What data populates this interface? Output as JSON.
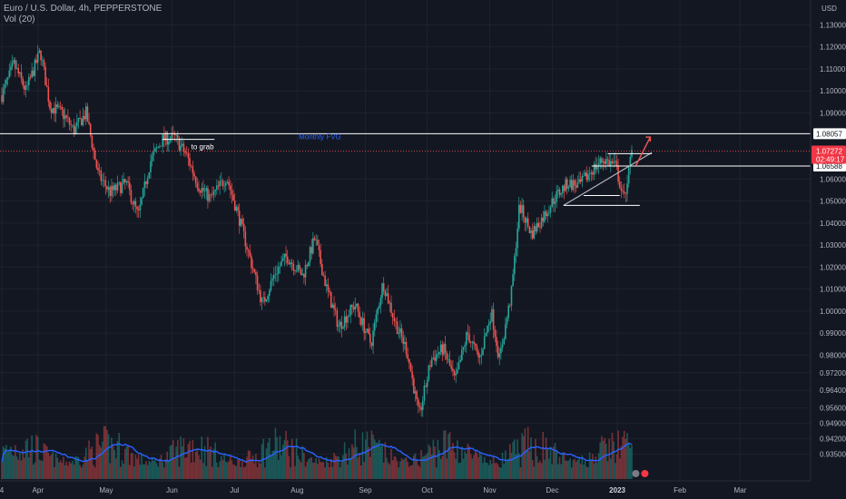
{
  "header": {
    "symbol_line": "Euro / U.S. Dollar, 4h, PEPPERSTONE",
    "indicator_line": "Vol (20)"
  },
  "chart_data": {
    "type": "candlestick",
    "currency_label": "USD",
    "ylim": [
      0.927,
      1.138
    ],
    "y_ticks": [
      "1.13000",
      "1.12000",
      "1.11000",
      "1.10000",
      "1.09000",
      "1.06000",
      "1.05000",
      "1.04000",
      "1.03000",
      "1.02000",
      "1.01000",
      "1.00000",
      "0.99000",
      "0.98000",
      "0.97200",
      "0.96400",
      "0.95600",
      "0.94900",
      "0.94200",
      "0.93500"
    ],
    "x_ticks": [
      {
        "label": "4",
        "pos": 0.0
      },
      {
        "label": "Apr",
        "pos": 0.045
      },
      {
        "label": "May",
        "pos": 0.13
      },
      {
        "label": "Jun",
        "pos": 0.212
      },
      {
        "label": "Jul",
        "pos": 0.29
      },
      {
        "label": "Aug",
        "pos": 0.368
      },
      {
        "label": "Sep",
        "pos": 0.453
      },
      {
        "label": "Oct",
        "pos": 0.53
      },
      {
        "label": "Nov",
        "pos": 0.608
      },
      {
        "label": "Dec",
        "pos": 0.686
      },
      {
        "label": "2023",
        "pos": 0.767,
        "bold": true
      },
      {
        "label": "Feb",
        "pos": 0.845
      },
      {
        "label": "Mar",
        "pos": 0.92
      }
    ],
    "price_path": [
      [
        0.0,
        1.098
      ],
      [
        0.015,
        1.112
      ],
      [
        0.03,
        1.1
      ],
      [
        0.048,
        1.118
      ],
      [
        0.06,
        1.093
      ],
      [
        0.075,
        1.09
      ],
      [
        0.09,
        1.082
      ],
      [
        0.105,
        1.09
      ],
      [
        0.12,
        1.062
      ],
      [
        0.135,
        1.054
      ],
      [
        0.155,
        1.058
      ],
      [
        0.17,
        1.043
      ],
      [
        0.185,
        1.068
      ],
      [
        0.2,
        1.078
      ],
      [
        0.215,
        1.079
      ],
      [
        0.23,
        1.071
      ],
      [
        0.245,
        1.057
      ],
      [
        0.26,
        1.051
      ],
      [
        0.28,
        1.061
      ],
      [
        0.295,
        1.043
      ],
      [
        0.31,
        1.023
      ],
      [
        0.325,
        1.003
      ],
      [
        0.34,
        1.017
      ],
      [
        0.355,
        1.025
      ],
      [
        0.375,
        1.016
      ],
      [
        0.39,
        1.033
      ],
      [
        0.405,
        1.01
      ],
      [
        0.42,
        0.993
      ],
      [
        0.44,
        1.003
      ],
      [
        0.46,
        0.985
      ],
      [
        0.475,
        1.013
      ],
      [
        0.49,
        0.995
      ],
      [
        0.505,
        0.982
      ],
      [
        0.52,
        0.952
      ],
      [
        0.535,
        0.978
      ],
      [
        0.55,
        0.983
      ],
      [
        0.565,
        0.968
      ],
      [
        0.58,
        0.99
      ],
      [
        0.595,
        0.978
      ],
      [
        0.61,
        1.0
      ],
      [
        0.62,
        0.978
      ],
      [
        0.635,
        1.008
      ],
      [
        0.645,
        1.048
      ],
      [
        0.66,
        1.035
      ],
      [
        0.675,
        1.043
      ],
      [
        0.69,
        1.052
      ],
      [
        0.705,
        1.058
      ],
      [
        0.72,
        1.057
      ],
      [
        0.735,
        1.064
      ],
      [
        0.75,
        1.069
      ],
      [
        0.765,
        1.066
      ],
      [
        0.775,
        1.05
      ],
      [
        0.785,
        1.072
      ]
    ],
    "horizontal_levels": [
      {
        "value": 1.08057,
        "label": "1.08057",
        "style": "white"
      },
      {
        "value": 1.06588,
        "label": "1.06588",
        "style": "white"
      }
    ],
    "current_price": {
      "label": "1.07272",
      "sub": "02:49:17"
    },
    "annotations": {
      "to_grab": "to grab",
      "monthly_fvg": "Monthly FVG"
    },
    "volume_ma_color": "#2962ff",
    "up_color": "#26a69a",
    "down_color": "#ef5350"
  }
}
